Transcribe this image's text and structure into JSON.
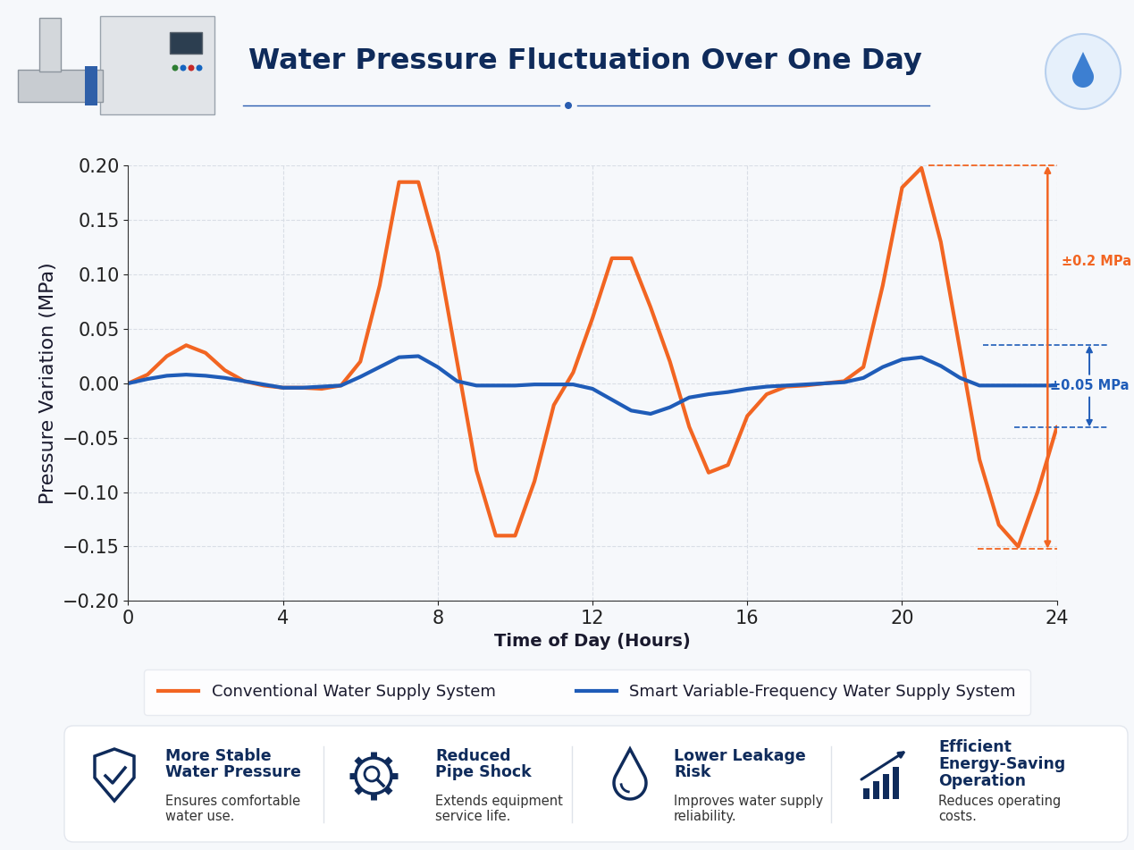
{
  "chart_data": {
    "type": "line",
    "title": "Water Pressure Fluctuation Over One Day",
    "x_label": "Time of Day (Hours)",
    "y_label": "Pressure Variation (MPa)",
    "x": [
      0,
      0.5,
      1,
      1.5,
      2,
      2.5,
      3,
      3.5,
      4,
      4.5,
      5,
      5.5,
      6,
      6.5,
      7,
      7.5,
      8,
      8.5,
      9,
      9.5,
      10,
      10.5,
      11,
      11.5,
      12,
      12.5,
      13,
      13.5,
      14,
      14.5,
      15,
      15.5,
      16,
      16.5,
      17,
      17.5,
      18,
      18.5,
      19,
      19.5,
      20,
      20.5,
      21,
      21.5,
      22,
      22.5,
      23,
      23.5,
      24
    ],
    "series": [
      {
        "name": "Conventional Water Supply System",
        "color": "#f26522",
        "values": [
          0.0,
          0.008,
          0.025,
          0.035,
          0.028,
          0.012,
          0.002,
          -0.002,
          -0.004,
          -0.004,
          -0.005,
          -0.002,
          0.02,
          0.09,
          0.185,
          0.185,
          0.12,
          0.02,
          -0.08,
          -0.14,
          -0.14,
          -0.09,
          -0.02,
          0.01,
          0.06,
          0.115,
          0.115,
          0.07,
          0.02,
          -0.04,
          -0.082,
          -0.075,
          -0.03,
          -0.01,
          -0.003,
          -0.002,
          0.0,
          0.002,
          0.015,
          0.09,
          0.18,
          0.198,
          0.13,
          0.03,
          -0.07,
          -0.13,
          -0.15,
          -0.1,
          -0.04
        ]
      },
      {
        "name": "Smart Variable-Frequency Water Supply System",
        "color": "#1f5cb8",
        "values": [
          0.0,
          0.004,
          0.007,
          0.008,
          0.007,
          0.005,
          0.002,
          -0.001,
          -0.004,
          -0.004,
          -0.003,
          -0.002,
          0.006,
          0.015,
          0.024,
          0.025,
          0.015,
          0.002,
          -0.002,
          -0.002,
          -0.002,
          -0.001,
          -0.001,
          -0.001,
          -0.005,
          -0.015,
          -0.025,
          -0.028,
          -0.022,
          -0.013,
          -0.01,
          -0.008,
          -0.005,
          -0.003,
          -0.002,
          -0.001,
          0.0,
          0.001,
          0.005,
          0.015,
          0.022,
          0.024,
          0.016,
          0.005,
          -0.002,
          -0.002,
          -0.002,
          -0.002,
          -0.002
        ]
      }
    ],
    "xlim": [
      0,
      24
    ],
    "xticks": [
      0,
      4,
      8,
      12,
      16,
      20,
      24
    ],
    "ylim": [
      -0.2,
      0.2
    ],
    "yticks": [
      {
        "value": -0.2,
        "label": "−0.20"
      },
      {
        "value": -0.15,
        "label": "−0.15"
      },
      {
        "value": -0.1,
        "label": "−0.10"
      },
      {
        "value": -0.05,
        "label": "−0.05"
      },
      {
        "value": 0,
        "label": "0.00"
      },
      {
        "value": 0.05,
        "label": "0.05"
      },
      {
        "value": 0.1,
        "label": "0.10"
      },
      {
        "value": 0.15,
        "label": "0.15"
      },
      {
        "value": 0.2,
        "label": "0.20"
      }
    ],
    "grid": true,
    "legend": "upper center",
    "annotations": [
      {
        "text": "±0.2 MPa",
        "y": [
          0.2,
          -0.152
        ],
        "color": "#f26522"
      },
      {
        "text": "±0.05 MPa",
        "y": [
          0.035,
          -0.04
        ],
        "color": "#1f5cb8"
      }
    ]
  },
  "features": [
    {
      "title": "More Stable\nWater Pressure",
      "text": "Ensures comfortable\nwater use."
    },
    {
      "title": "Reduced\nPipe Shock",
      "text": "Extends equipment\nservice life."
    },
    {
      "title": "Lower Leakage\nRisk",
      "text": "Improves water supply\nreliability."
    },
    {
      "title": "Efficient\nEnergy-Saving\nOperation",
      "text": "Reduces operating\ncosts."
    }
  ]
}
